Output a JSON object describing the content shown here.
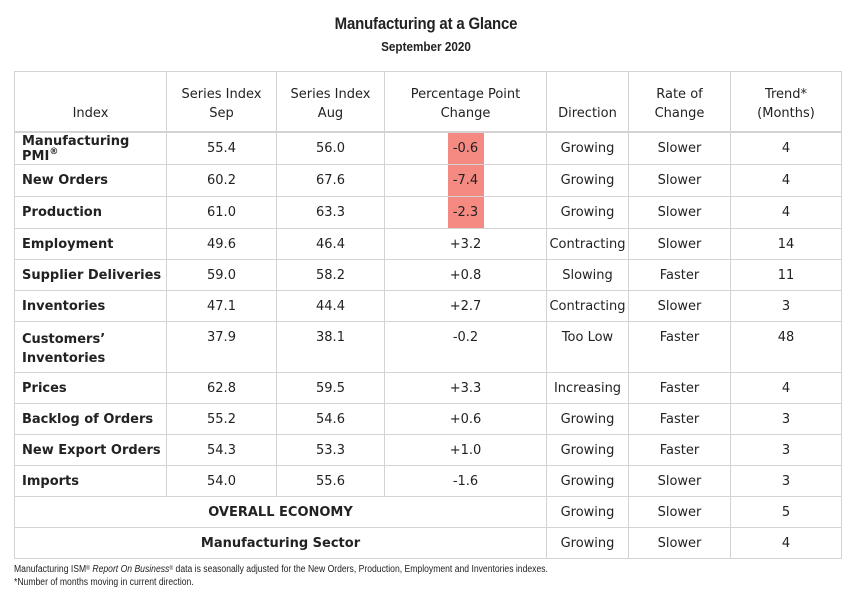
{
  "title": "Manufacturing at a Glance",
  "subtitle": "September 2020",
  "columns": {
    "index": "Index",
    "sep_line1": "Series Index",
    "sep_line2": "Sep",
    "aug_line1": "Series Index",
    "aug_line2": "Aug",
    "change_line1": "Percentage Point",
    "change_line2": "Change",
    "direction": "Direction",
    "rate_line1": "Rate of",
    "rate_line2": "Change",
    "trend_line1": "Trend*",
    "trend_line2": "(Months)"
  },
  "rows": [
    {
      "name": "Manufacturing PMI",
      "reg": "®",
      "sep": "55.4",
      "aug": "56.0",
      "change": "-0.6",
      "direction": "Growing",
      "rate": "Slower",
      "trend": "4"
    },
    {
      "name": "New Orders",
      "sep": "60.2",
      "aug": "67.6",
      "change": "-7.4",
      "direction": "Growing",
      "rate": "Slower",
      "trend": "4"
    },
    {
      "name": "Production",
      "sep": "61.0",
      "aug": "63.3",
      "change": "-2.3",
      "direction": "Growing",
      "rate": "Slower",
      "trend": "4"
    },
    {
      "name": "Employment",
      "sep": "49.6",
      "aug": "46.4",
      "change": "+3.2",
      "direction": "Contracting",
      "rate": "Slower",
      "trend": "14"
    },
    {
      "name": "Supplier Deliveries",
      "sep": "59.0",
      "aug": "58.2",
      "change": "+0.8",
      "direction": "Slowing",
      "rate": "Faster",
      "trend": "11"
    },
    {
      "name": "Inventories",
      "sep": "47.1",
      "aug": "44.4",
      "change": "+2.7",
      "direction": "Contracting",
      "rate": "Slower",
      "trend": "3"
    },
    {
      "name_line1": "Customers’",
      "name_line2": "Inventories",
      "sep": "37.9",
      "aug": "38.1",
      "change": "-0.2",
      "direction": "Too Low",
      "rate": "Faster",
      "trend": "48"
    },
    {
      "name": "Prices",
      "sep": "62.8",
      "aug": "59.5",
      "change": "+3.3",
      "direction": "Increasing",
      "rate": "Faster",
      "trend": "4"
    },
    {
      "name": "Backlog of Orders",
      "sep": "55.2",
      "aug": "54.6",
      "change": "+0.6",
      "direction": "Growing",
      "rate": "Faster",
      "trend": "3"
    },
    {
      "name": "New Export Orders",
      "sep": "54.3",
      "aug": "53.3",
      "change": "+1.0",
      "direction": "Growing",
      "rate": "Faster",
      "trend": "3"
    },
    {
      "name": "Imports",
      "sep": "54.0",
      "aug": "55.6",
      "change": "-1.6",
      "direction": "Growing",
      "rate": "Slower",
      "trend": "3"
    }
  ],
  "summary": [
    {
      "label": "OVERALL ECONOMY",
      "direction": "Growing",
      "rate": "Slower",
      "trend": "5"
    },
    {
      "label": "Manufacturing Sector",
      "direction": "Growing",
      "rate": "Slower",
      "trend": "4"
    }
  ],
  "footnote": {
    "line1_a": "Manufacturing ISM",
    "line1_reg1": "®",
    "line1_b": "Report On Business",
    "line1_reg2": "®",
    "line1_c": " data is seasonally adjusted for the New Orders, Production, Employment and Inventories indexes.",
    "line2": "*Number of months moving in current direction."
  },
  "colors": {
    "highlight": "#f58a82",
    "border": "#d3d3d3"
  }
}
